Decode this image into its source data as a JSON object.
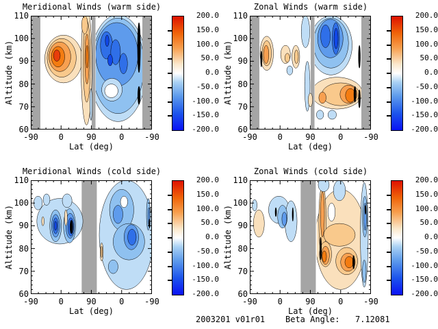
{
  "footer": {
    "run_id": "2003201 v01r01",
    "beta_angle_label": "Beta Angle:",
    "beta_angle_value": "7.12081"
  },
  "colors": {
    "background": "#ffffff",
    "gap_gray": "#a5a5a5",
    "frame": "#000000",
    "palette": {
      "o1": "#fae0bc",
      "o2": "#f9c98c",
      "o3": "#f8a050",
      "o4": "#f47c11",
      "o5": "#e83d0b",
      "b1": "#bfddf6",
      "b2": "#8fc1f0",
      "b3": "#5e9bec",
      "b4": "#2f6fe8",
      "b5": "#1148e8",
      "blk": "#000000",
      "wt": "#ffffff"
    }
  },
  "chart_data": {
    "type": "contour",
    "description": "Four filled-contour panels of wind speed versus latitude-along-orbit and altitude. Warm-side panels (top) have gray data-gap bands at both edges and at mid-orbit; cold-side panels (bottom) have one wide gray gap band left of mid-orbit. Positive winds orange/red, negative blue; black fill where magnitude exceeds the color scale.",
    "axes": {
      "xlabel": "Lat (deg)",
      "ylabel": "Altitude (km)",
      "x_tick_labels": [
        "-90",
        "0",
        "90",
        "0",
        "-90"
      ],
      "y_tick_labels": [
        "110",
        "100",
        "90",
        "80",
        "70",
        "60"
      ],
      "y_range": [
        60,
        110
      ],
      "x_path": "latitude sweeps -90 to 90 then back to -90 across the orbit"
    },
    "colorbar": {
      "min": -200,
      "max": 200,
      "step": 50,
      "tick_labels": [
        "200.0",
        "150.0",
        "100.0",
        "50.0",
        "0.0",
        "-50.0",
        "-100.0",
        "-150.0",
        "-200.0"
      ],
      "gradient": [
        "#0a12f5 0%",
        "#1d55ec 15%",
        "#5e9bec 30%",
        "#a8d0f4 42%",
        "#ffffff 50%",
        "#fbe8cc 58%",
        "#f8a050 72%",
        "#f0650a 85%",
        "#de1200 100%"
      ]
    },
    "panels": [
      {
        "id": "meridional-warm",
        "title": "Meridional Winds (warm side)",
        "features": "Orange cell (~+125) centered near lat 0 ascending at 92 km; strong narrow positive column just before mid-orbit gap; broad negative region (-50 to -175) over entire descending half, 64-110 km, off-scale black streaks near far edge; weak/near-zero pocket around 77 km.",
        "gray_bands": [
          [
            0.0,
            0.079
          ],
          [
            0.503,
            0.534
          ],
          [
            0.921,
            1.0
          ]
        ],
        "clip_region": [
          0.537,
          0.921
        ],
        "blobs": [
          [
            0.27,
            91,
            0.155,
            10.5,
            "o1",
            0
          ],
          [
            0.255,
            91.5,
            0.12,
            8.5,
            "o2",
            0
          ],
          [
            0.24,
            92,
            0.09,
            6.5,
            "o3",
            0
          ],
          [
            0.225,
            92,
            0.055,
            4.5,
            "o4",
            0
          ],
          [
            0.215,
            92.5,
            0.028,
            2.5,
            "o5",
            0
          ],
          [
            0.46,
            88,
            0.045,
            26,
            "o1",
            0
          ],
          [
            0.462,
            90,
            0.03,
            18,
            "o2",
            0
          ],
          [
            0.464,
            91,
            0.018,
            11,
            "o3",
            0
          ],
          [
            0.465,
            92,
            0.01,
            5,
            "o4",
            0
          ],
          [
            0.445,
            106,
            0.025,
            4,
            "o2",
            0
          ],
          [
            0.72,
            87,
            0.235,
            23.5,
            "b1",
            1
          ],
          [
            0.72,
            88,
            0.215,
            21,
            "b2",
            1
          ],
          [
            0.71,
            93,
            0.175,
            14,
            "b3",
            1
          ],
          [
            0.625,
            97,
            0.05,
            6,
            "b4",
            1
          ],
          [
            0.7,
            94,
            0.04,
            5.5,
            "b4",
            1
          ],
          [
            0.765,
            89,
            0.033,
            4.5,
            "b4",
            1
          ],
          [
            0.63,
            99,
            0.015,
            2.5,
            "b5",
            1
          ],
          [
            0.655,
            90.5,
            0.02,
            2.5,
            "b5",
            1
          ],
          [
            0.893,
            96,
            0.012,
            11,
            "blk",
            1
          ],
          [
            0.893,
            75,
            0.01,
            4,
            "blk",
            1
          ],
          [
            0.67,
            77.5,
            0.085,
            5,
            "b1",
            1
          ],
          [
            0.665,
            77,
            0.055,
            3,
            "wt",
            1
          ],
          [
            0.497,
            71,
            0.01,
            7,
            "b1",
            0
          ]
        ]
      },
      {
        "id": "zonal-warm",
        "title": "Zonal Winds (warm side)",
        "features": "Moderate positive cells (~+75, locally off-scale) near 90-95 km on ascending half; deep negative cell (-150) 85-110 km centered on descending half; positive band (+50 to +125, locally off-scale) 70-82 km on descending half; weak negative pockets near 66 km.",
        "gray_bands": [
          [
            0.0,
            0.079
          ],
          [
            0.503,
            0.534
          ],
          [
            0.921,
            1.0
          ]
        ],
        "clip_region": [
          0.537,
          0.921
        ],
        "blobs": [
          [
            0.14,
            93.5,
            0.055,
            7.5,
            "o1",
            0
          ],
          [
            0.14,
            93.5,
            0.038,
            5.5,
            "o2",
            0
          ],
          [
            0.135,
            93,
            0.022,
            4,
            "o3",
            0
          ],
          [
            0.095,
            91,
            0.006,
            3.5,
            "blk",
            0
          ],
          [
            0.295,
            93,
            0.04,
            4,
            "o1",
            0
          ],
          [
            0.31,
            91.5,
            0.02,
            2,
            "o2",
            0
          ],
          [
            0.38,
            92,
            0.032,
            5,
            "o1",
            0
          ],
          [
            0.385,
            92,
            0.016,
            3,
            "o2",
            0
          ],
          [
            0.33,
            86,
            0.025,
            2,
            "b1",
            0
          ],
          [
            0.46,
            103,
            0.035,
            7,
            "b1",
            0
          ],
          [
            0.475,
            79,
            0.022,
            11,
            "b1",
            0
          ],
          [
            0.67,
            97,
            0.175,
            13,
            "b1",
            1
          ],
          [
            0.67,
            98,
            0.145,
            11,
            "b2",
            1
          ],
          [
            0.665,
            100,
            0.105,
            8.5,
            "b3",
            1
          ],
          [
            0.625,
            101,
            0.04,
            5,
            "b4",
            1
          ],
          [
            0.71,
            100,
            0.03,
            7,
            "b4",
            1
          ],
          [
            0.712,
            100,
            0.017,
            4.5,
            "b5",
            1
          ],
          [
            0.72,
            76,
            0.21,
            7,
            "o1",
            1
          ],
          [
            0.75,
            75.5,
            0.155,
            5,
            "o2",
            1
          ],
          [
            0.815,
            75.5,
            0.07,
            4,
            "o3",
            1
          ],
          [
            0.83,
            75,
            0.04,
            3,
            "o4",
            1
          ],
          [
            0.868,
            75.5,
            0.009,
            3.5,
            "blk",
            1
          ],
          [
            0.6,
            74,
            0.03,
            2.5,
            "o3",
            1
          ],
          [
            0.5,
            73,
            0.018,
            3,
            "o1",
            0
          ],
          [
            0.58,
            66.5,
            0.03,
            2,
            "b1",
            1
          ],
          [
            0.68,
            66.5,
            0.035,
            2,
            "b1",
            1
          ],
          [
            0.905,
            92,
            0.008,
            5,
            "blk",
            1
          ],
          [
            0.905,
            73.5,
            0.008,
            4,
            "blk",
            1
          ]
        ]
      },
      {
        "id": "meridional-cold",
        "title": "Meridional Winds (cold side)",
        "features": "Two strong negative cells (-100 to off-scale black) near 90 km, 83-102 km band on ascending half with small positive slivers; broad negative region (-25 to -125) 63-110 km over descending half with core near 85 km and dark spots at far edge.",
        "gray_bands": [
          [
            0.42,
            0.545
          ]
        ],
        "clip_region": [
          0.553,
          1.0
        ],
        "blobs": [
          [
            0.24,
            92,
            0.19,
            10,
            "b1",
            0
          ],
          [
            0.06,
            100,
            0.035,
            3,
            "b1",
            0
          ],
          [
            0.13,
            101.5,
            0.028,
            2.5,
            "b1",
            0
          ],
          [
            0.3,
            101,
            0.04,
            3,
            "b1",
            0
          ],
          [
            0.205,
            90,
            0.048,
            7,
            "b2",
            0
          ],
          [
            0.205,
            90,
            0.033,
            5,
            "b3",
            0
          ],
          [
            0.205,
            90,
            0.02,
            3.5,
            "b4",
            0
          ],
          [
            0.205,
            90,
            0.01,
            2,
            "b5",
            0
          ],
          [
            0.32,
            90,
            0.05,
            7.5,
            "b2",
            0
          ],
          [
            0.325,
            90,
            0.036,
            5.5,
            "b3",
            0
          ],
          [
            0.33,
            89.5,
            0.023,
            4,
            "b4",
            0
          ],
          [
            0.335,
            89.5,
            0.012,
            3,
            "blk",
            0
          ],
          [
            0.29,
            93.5,
            0.012,
            3.5,
            "o1",
            0
          ],
          [
            0.1,
            92,
            0.01,
            2,
            "o1",
            0
          ],
          [
            0.79,
            86,
            0.225,
            24,
            "b1",
            1
          ],
          [
            0.75,
            97,
            0.1,
            9,
            "b2",
            1
          ],
          [
            0.81,
            83,
            0.13,
            8,
            "b2",
            1
          ],
          [
            0.83,
            85,
            0.06,
            5.5,
            "b3",
            1
          ],
          [
            0.72,
            95,
            0.04,
            4,
            "b3",
            1
          ],
          [
            0.835,
            85,
            0.035,
            3.5,
            "b4",
            1
          ],
          [
            0.77,
            100.5,
            0.03,
            2.5,
            "wt",
            1
          ],
          [
            0.97,
            95,
            0.015,
            7,
            "b2",
            1
          ],
          [
            0.975,
            94,
            0.008,
            4,
            "b3",
            1
          ],
          [
            0.98,
            91,
            0.005,
            2,
            "blk",
            1
          ],
          [
            0.585,
            78.5,
            0.013,
            4,
            "o1",
            1
          ],
          [
            0.585,
            78.5,
            0.007,
            2.5,
            "o2",
            1
          ],
          [
            0.68,
            72,
            0.04,
            3,
            "b2",
            1
          ]
        ]
      },
      {
        "id": "zonal-cold",
        "title": "Zonal Winds (cold side)",
        "features": "Weak negative blobs (-25 to -75, tiny off-scale marks) 85-103 km on ascending half, small positive patch near the -90 edge; broad positive region (+25 to +125, locally off-scale) 63-105 km over descending half with cores near 74-78 km; strong negative column (-100) hugging the far -90 edge.",
        "gray_bands": [
          [
            0.42,
            0.545
          ]
        ],
        "clip_region": [
          0.553,
          1.0
        ],
        "blobs": [
          [
            0.075,
            91,
            0.045,
            6,
            "o1",
            0
          ],
          [
            0.04,
            99,
            0.02,
            2.5,
            "b1",
            0
          ],
          [
            0.24,
            97,
            0.085,
            6,
            "b1",
            0
          ],
          [
            0.34,
            92,
            0.05,
            9,
            "b1",
            0
          ],
          [
            0.27,
            94,
            0.04,
            5,
            "b2",
            0
          ],
          [
            0.285,
            93,
            0.02,
            3,
            "b3",
            0
          ],
          [
            0.215,
            96,
            0.006,
            2,
            "blk",
            0
          ],
          [
            0.355,
            95,
            0.005,
            3,
            "blk",
            0
          ],
          [
            0.75,
            84,
            0.21,
            22,
            "o1",
            1
          ],
          [
            0.6,
            92,
            0.03,
            16,
            "o2",
            1
          ],
          [
            0.6,
            95,
            0.016,
            10,
            "o3",
            1
          ],
          [
            0.74,
            86,
            0.13,
            5,
            "o2",
            1
          ],
          [
            0.675,
            96,
            0.03,
            4,
            "wt",
            1
          ],
          [
            0.625,
            77.5,
            0.05,
            5.5,
            "o2",
            1
          ],
          [
            0.625,
            77,
            0.032,
            4,
            "o3",
            1
          ],
          [
            0.615,
            76.5,
            0.018,
            2.5,
            "o4",
            1
          ],
          [
            0.8,
            74.5,
            0.09,
            6,
            "o2",
            1
          ],
          [
            0.81,
            74,
            0.06,
            4,
            "o3",
            1
          ],
          [
            0.82,
            74,
            0.035,
            2.5,
            "o4",
            1
          ],
          [
            0.857,
            74,
            0.008,
            3,
            "blk",
            1
          ],
          [
            0.585,
            80,
            0.007,
            5,
            "blk",
            1
          ],
          [
            0.61,
            108,
            0.045,
            3,
            "b1",
            1
          ],
          [
            0.74,
            105.5,
            0.05,
            4.5,
            "b1",
            1
          ],
          [
            0.945,
            86,
            0.032,
            23,
            "b1",
            1
          ],
          [
            0.95,
            94,
            0.02,
            9,
            "b2",
            1
          ],
          [
            0.952,
            94,
            0.011,
            6,
            "b3",
            1
          ],
          [
            0.955,
            97,
            0.005,
            2,
            "blk",
            1
          ],
          [
            0.945,
            70,
            0.015,
            5,
            "b2",
            1
          ]
        ]
      }
    ]
  }
}
